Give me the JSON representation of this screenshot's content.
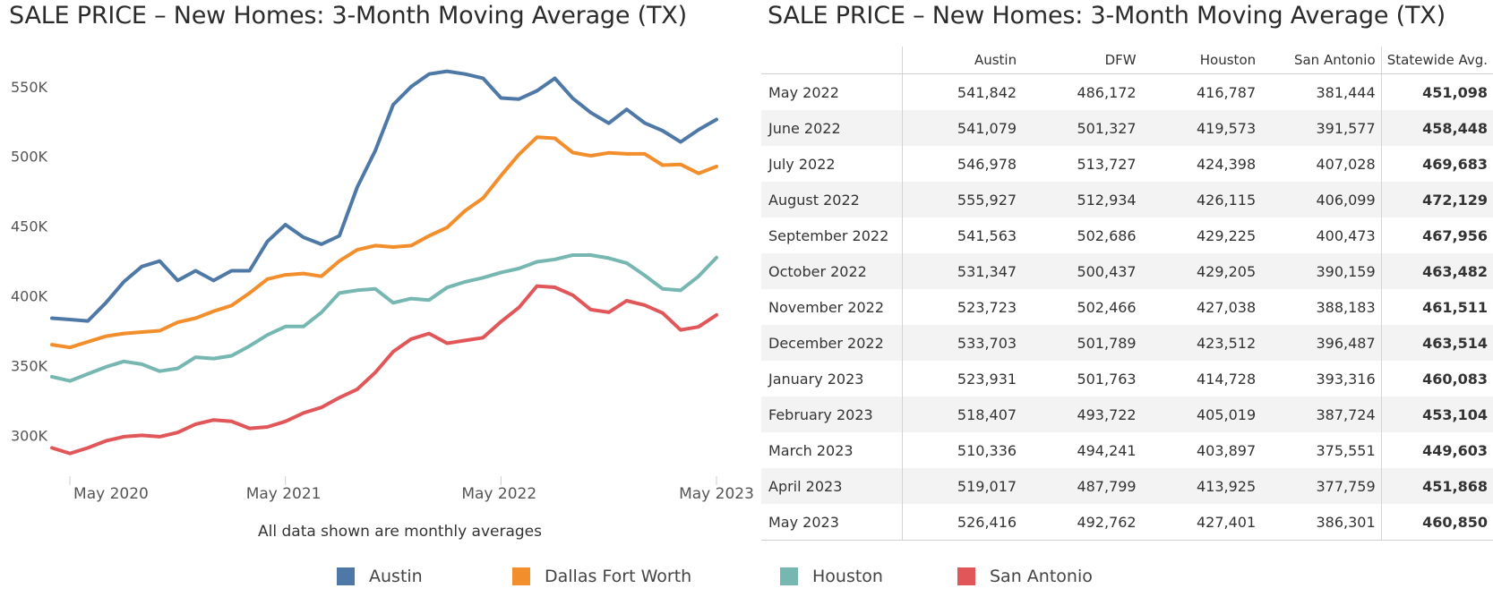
{
  "left_title": "SALE PRICE – New Homes: 3-Month Moving Average (TX)",
  "right_title": "SALE PRICE – New Homes: 3-Month Moving Average (TX)",
  "note": "All data shown are monthly averages",
  "chart_data": {
    "type": "line",
    "title": "SALE PRICE – New Homes: 3-Month Moving Average (TX)",
    "xlabel": "",
    "ylabel": "",
    "x_ticks": [
      "May 2020",
      "May 2021",
      "May 2022",
      "May 2023"
    ],
    "y_ticks": [
      "300K",
      "350K",
      "400K",
      "450K",
      "500K",
      "550K"
    ],
    "y_tick_values": [
      300000,
      350000,
      400000,
      450000,
      500000,
      550000
    ],
    "ylim": [
      272000,
      580000
    ],
    "x": [
      "2020-04",
      "2020-05",
      "2020-06",
      "2020-07",
      "2020-08",
      "2020-09",
      "2020-10",
      "2020-11",
      "2020-12",
      "2021-01",
      "2021-02",
      "2021-03",
      "2021-04",
      "2021-05",
      "2021-06",
      "2021-07",
      "2021-08",
      "2021-09",
      "2021-10",
      "2021-11",
      "2021-12",
      "2022-01",
      "2022-02",
      "2022-03",
      "2022-04",
      "2022-05",
      "2022-06",
      "2022-07",
      "2022-08",
      "2022-09",
      "2022-10",
      "2022-11",
      "2022-12",
      "2023-01",
      "2023-02",
      "2023-03",
      "2023-04",
      "2023-05"
    ],
    "grid": false,
    "legend_position": "bottom",
    "series": [
      {
        "name": "Austin",
        "color": "#4e79a7",
        "values": [
          384000,
          383000,
          382000,
          395000,
          410000,
          421000,
          425000,
          411000,
          418000,
          411000,
          418000,
          418000,
          439000,
          451000,
          442000,
          437000,
          443000,
          478000,
          504000,
          537000,
          550000,
          559000,
          561000,
          559000,
          556000,
          541842,
          541079,
          546978,
          555927,
          541563,
          531347,
          523723,
          533703,
          523931,
          518407,
          510336,
          519017,
          526416
        ]
      },
      {
        "name": "Dallas Fort Worth",
        "color": "#f28e2b",
        "values": [
          365000,
          363000,
          367000,
          371000,
          373000,
          374000,
          375000,
          381000,
          384000,
          389000,
          393000,
          402000,
          412000,
          415000,
          416000,
          414000,
          425000,
          433000,
          436000,
          435000,
          436000,
          443000,
          449000,
          461000,
          470000,
          486172,
          501327,
          513727,
          512934,
          502686,
          500437,
          502466,
          501789,
          501763,
          493722,
          494241,
          487799,
          492762
        ]
      },
      {
        "name": "Houston",
        "color": "#76b7b2",
        "values": [
          342000,
          339000,
          344000,
          349000,
          353000,
          351000,
          346000,
          348000,
          356000,
          355000,
          357000,
          364000,
          372000,
          378000,
          378000,
          388000,
          402000,
          404000,
          405000,
          395000,
          398000,
          397000,
          406000,
          410000,
          413000,
          416787,
          419573,
          424398,
          426115,
          429225,
          429205,
          427038,
          423512,
          414728,
          405019,
          403897,
          413925,
          427401
        ]
      },
      {
        "name": "San Antonio",
        "color": "#e15759",
        "values": [
          291000,
          287000,
          291000,
          296000,
          299000,
          300000,
          299000,
          302000,
          308000,
          311000,
          310000,
          305000,
          306000,
          310000,
          316000,
          320000,
          327000,
          333000,
          345000,
          360000,
          369000,
          373000,
          366000,
          368000,
          370000,
          381444,
          391577,
          407028,
          406099,
          400473,
          390159,
          388183,
          396487,
          393316,
          387724,
          375551,
          377759,
          386301
        ]
      }
    ]
  },
  "table": {
    "columns": [
      "Austin",
      "DFW",
      "Houston",
      "San Antonio",
      "Statewide Avg."
    ],
    "rows": [
      {
        "label": "May 2022",
        "values": [
          "541,842",
          "486,172",
          "416,787",
          "381,444",
          "451,098"
        ]
      },
      {
        "label": "June 2022",
        "values": [
          "541,079",
          "501,327",
          "419,573",
          "391,577",
          "458,448"
        ]
      },
      {
        "label": "July 2022",
        "values": [
          "546,978",
          "513,727",
          "424,398",
          "407,028",
          "469,683"
        ]
      },
      {
        "label": "August 2022",
        "values": [
          "555,927",
          "512,934",
          "426,115",
          "406,099",
          "472,129"
        ]
      },
      {
        "label": "September 2022",
        "values": [
          "541,563",
          "502,686",
          "429,225",
          "400,473",
          "467,956"
        ]
      },
      {
        "label": "October 2022",
        "values": [
          "531,347",
          "500,437",
          "429,205",
          "390,159",
          "463,482"
        ]
      },
      {
        "label": "November 2022",
        "values": [
          "523,723",
          "502,466",
          "427,038",
          "388,183",
          "461,511"
        ]
      },
      {
        "label": "December 2022",
        "values": [
          "533,703",
          "501,789",
          "423,512",
          "396,487",
          "463,514"
        ]
      },
      {
        "label": "January 2023",
        "values": [
          "523,931",
          "501,763",
          "414,728",
          "393,316",
          "460,083"
        ]
      },
      {
        "label": "February 2023",
        "values": [
          "518,407",
          "493,722",
          "405,019",
          "387,724",
          "453,104"
        ]
      },
      {
        "label": "March 2023",
        "values": [
          "510,336",
          "494,241",
          "403,897",
          "375,551",
          "449,603"
        ]
      },
      {
        "label": "April 2023",
        "values": [
          "519,017",
          "487,799",
          "413,925",
          "377,759",
          "451,868"
        ]
      },
      {
        "label": "May 2023",
        "values": [
          "526,416",
          "492,762",
          "427,401",
          "386,301",
          "460,850"
        ]
      }
    ]
  },
  "legend": [
    {
      "name": "Austin",
      "color": "#4e79a7"
    },
    {
      "name": "Dallas Fort Worth",
      "color": "#f28e2b"
    },
    {
      "name": "Houston",
      "color": "#76b7b2"
    },
    {
      "name": "San Antonio",
      "color": "#e15759"
    }
  ]
}
